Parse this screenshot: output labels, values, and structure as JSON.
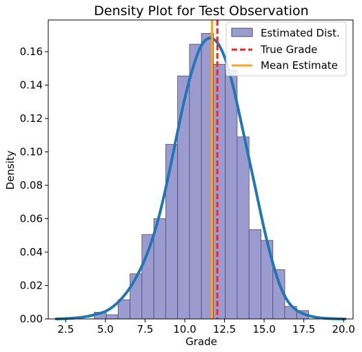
{
  "chart_data": {
    "type": "bar",
    "title": "Density Plot for Test Observation",
    "xlabel": "Grade",
    "ylabel": "Density",
    "xlim": [
      1.4,
      20.6
    ],
    "ylim": [
      0,
      0.179
    ],
    "x_ticks": [
      2.5,
      5.0,
      7.5,
      10.0,
      12.5,
      15.0,
      17.5,
      20.0
    ],
    "x_tick_labels": [
      "2.5",
      "5.0",
      "7.5",
      "10.0",
      "12.5",
      "15.0",
      "17.5",
      "20.0"
    ],
    "y_ticks": [
      0,
      0.02,
      0.04,
      0.06,
      0.08,
      0.1,
      0.12,
      0.14,
      0.16
    ],
    "y_tick_labels": [
      "0.00",
      "0.02",
      "0.04",
      "0.06",
      "0.08",
      "0.10",
      "0.12",
      "0.14",
      "0.16"
    ],
    "grid": false,
    "legend_position": "top-right",
    "histogram": {
      "name": "Estimated Dist.",
      "color": "#9b9bd0",
      "edge_color": "#4a4a70",
      "bins": [
        {
          "x0": 4.3,
          "x1": 5.05,
          "density": 0.004
        },
        {
          "x0": 5.05,
          "x1": 5.8,
          "density": 0.0025
        },
        {
          "x0": 5.8,
          "x1": 6.55,
          "density": 0.0115
        },
        {
          "x0": 6.55,
          "x1": 7.3,
          "density": 0.027
        },
        {
          "x0": 7.3,
          "x1": 8.05,
          "density": 0.0505
        },
        {
          "x0": 8.05,
          "x1": 8.8,
          "density": 0.06
        },
        {
          "x0": 8.8,
          "x1": 9.55,
          "density": 0.1045
        },
        {
          "x0": 9.55,
          "x1": 10.3,
          "density": 0.1455
        },
        {
          "x0": 10.3,
          "x1": 11.05,
          "density": 0.1645
        },
        {
          "x0": 11.05,
          "x1": 11.8,
          "density": 0.171
        },
        {
          "x0": 11.8,
          "x1": 12.55,
          "density": 0.1525
        },
        {
          "x0": 12.55,
          "x1": 13.3,
          "density": 0.149
        },
        {
          "x0": 13.3,
          "x1": 14.05,
          "density": 0.109
        },
        {
          "x0": 14.05,
          "x1": 14.8,
          "density": 0.0535
        },
        {
          "x0": 14.8,
          "x1": 15.55,
          "density": 0.047
        },
        {
          "x0": 15.55,
          "x1": 16.3,
          "density": 0.0295
        },
        {
          "x0": 16.3,
          "x1": 17.05,
          "density": 0.0075
        },
        {
          "x0": 17.05,
          "x1": 17.8,
          "density": 0.005
        }
      ]
    },
    "kde": {
      "color": "#1f77b4",
      "x": [
        1.9,
        2.5,
        3.0,
        3.5,
        4.0,
        4.5,
        5.0,
        5.5,
        6.0,
        6.5,
        7.0,
        7.5,
        8.0,
        8.5,
        9.0,
        9.5,
        10.0,
        10.5,
        11.0,
        11.5,
        12.0,
        12.5,
        13.0,
        13.5,
        14.0,
        14.5,
        15.0,
        15.5,
        16.0,
        16.5,
        17.0,
        17.5,
        18.0,
        18.5,
        19.0,
        19.5,
        20.1
      ],
      "y": [
        0.0,
        0.0002,
        0.0005,
        0.001,
        0.0018,
        0.003,
        0.0045,
        0.0075,
        0.012,
        0.018,
        0.026,
        0.036,
        0.049,
        0.066,
        0.087,
        0.11,
        0.132,
        0.15,
        0.163,
        0.168,
        0.166,
        0.157,
        0.141,
        0.12,
        0.098,
        0.076,
        0.054,
        0.035,
        0.02,
        0.0105,
        0.0055,
        0.003,
        0.0015,
        0.0007,
        0.0003,
        0.0001,
        0.0
      ]
    },
    "true_grade": {
      "name": "True Grade",
      "value": 12.05,
      "color": "#ff1f1f"
    },
    "mean_estimate": {
      "name": "Mean Estimate",
      "value": 11.72,
      "color": "#ffa31a"
    }
  }
}
